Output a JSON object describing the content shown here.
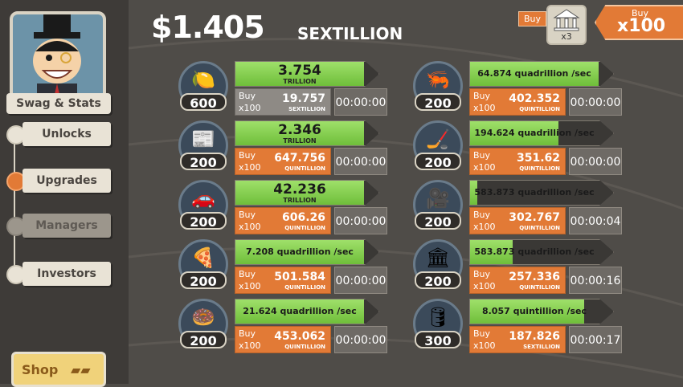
{
  "header": {
    "money": "$1.405",
    "money_unit": "SEXTILLION",
    "buy_small": "Buy",
    "multiplier_icon": "bank-icon",
    "multiplier_count": "x3",
    "buy_big_top": "Buy",
    "buy_big_amount": "x100"
  },
  "sidebar": {
    "swag_label": "Swag & Stats",
    "items": [
      {
        "label": "Unlocks"
      },
      {
        "label": "Upgrades"
      },
      {
        "label": "Managers"
      },
      {
        "label": "Investors"
      }
    ],
    "shop_label": "Shop"
  },
  "businesses": [
    {
      "icon": "lemon-icon",
      "glyph": "🍋",
      "owned": "600",
      "revenue": "3.754",
      "revenue_unit": "TRILLION",
      "rate": "",
      "progress": 0.9,
      "buy1": "Buy",
      "buy2": "x100",
      "cost": "19.757",
      "cost_unit": "SEXTILLION",
      "timer": "00:00:00",
      "buy_dim": true
    },
    {
      "icon": "newspaper-icon",
      "glyph": "📰",
      "owned": "200",
      "revenue": "2.346",
      "revenue_unit": "TRILLION",
      "rate": "",
      "progress": 0.9,
      "buy1": "Buy",
      "buy2": "x100",
      "cost": "647.756",
      "cost_unit": "QUINTILLION",
      "timer": "00:00:00",
      "buy_dim": false
    },
    {
      "icon": "car-wash-icon",
      "glyph": "🚗",
      "owned": "200",
      "revenue": "42.236",
      "revenue_unit": "TRILLION",
      "rate": "",
      "progress": 0.9,
      "buy1": "Buy",
      "buy2": "x100",
      "cost": "606.26",
      "cost_unit": "QUINTILLION",
      "timer": "00:00:00",
      "buy_dim": false
    },
    {
      "icon": "pizza-icon",
      "glyph": "🍕",
      "owned": "200",
      "revenue": "",
      "revenue_unit": "",
      "rate": "7.208 quadrillion /sec",
      "progress": 0.9,
      "buy1": "Buy",
      "buy2": "x100",
      "cost": "501.584",
      "cost_unit": "QUINTILLION",
      "timer": "00:00:00",
      "buy_dim": false
    },
    {
      "icon": "donut-icon",
      "glyph": "🍩",
      "owned": "200",
      "revenue": "",
      "revenue_unit": "",
      "rate": "21.624 quadrillion /sec",
      "progress": 0.9,
      "buy1": "Buy",
      "buy2": "x100",
      "cost": "453.062",
      "cost_unit": "QUINTILLION",
      "timer": "00:00:00",
      "buy_dim": false
    },
    {
      "icon": "shrimp-icon",
      "glyph": "🦐",
      "owned": "200",
      "revenue": "",
      "revenue_unit": "",
      "rate": "64.874 quadrillion /sec",
      "progress": 0.9,
      "buy1": "Buy",
      "buy2": "x100",
      "cost": "402.352",
      "cost_unit": "QUINTILLION",
      "timer": "00:00:00",
      "buy_dim": false
    },
    {
      "icon": "hockey-icon",
      "glyph": "🏒",
      "owned": "200",
      "revenue": "",
      "revenue_unit": "",
      "rate": "194.624 quadrillion /sec",
      "progress": 0.62,
      "buy1": "Buy",
      "buy2": "x100",
      "cost": "351.62",
      "cost_unit": "QUINTILLION",
      "timer": "00:00:00",
      "buy_dim": false
    },
    {
      "icon": "movie-camera-icon",
      "glyph": "🎥",
      "owned": "200",
      "revenue": "",
      "revenue_unit": "",
      "rate": "583.873 quadrillion /sec",
      "progress": 0.05,
      "buy1": "Buy",
      "buy2": "x100",
      "cost": "302.767",
      "cost_unit": "QUINTILLION",
      "timer": "00:00:04",
      "buy_dim": false
    },
    {
      "icon": "bank-icon",
      "glyph": "🏛",
      "owned": "200",
      "revenue": "",
      "revenue_unit": "",
      "rate": "583.873 quadrillion /sec",
      "progress": 0.3,
      "buy1": "Buy",
      "buy2": "x100",
      "cost": "257.336",
      "cost_unit": "QUINTILLION",
      "timer": "00:00:16",
      "buy_dim": false
    },
    {
      "icon": "oil-rig-icon",
      "glyph": "🛢",
      "owned": "300",
      "revenue": "",
      "revenue_unit": "",
      "rate": "8.057 quintillion /sec",
      "progress": 0.8,
      "buy1": "Buy",
      "buy2": "x100",
      "cost": "187.826",
      "cost_unit": "SEXTILLION",
      "timer": "00:00:17",
      "buy_dim": false
    }
  ]
}
